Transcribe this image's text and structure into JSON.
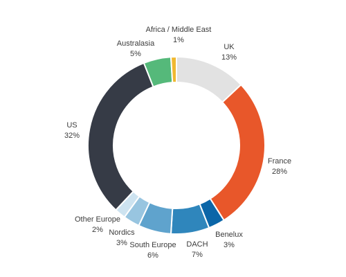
{
  "chart_data": {
    "type": "pie",
    "series": [
      {
        "values": [
          13,
          28,
          3,
          7,
          6,
          3,
          2,
          32,
          5,
          1
        ]
      }
    ],
    "categories": [
      "UK",
      "France",
      "Benelux",
      "DACH",
      "South Europe",
      "Nordics",
      "Other Europe",
      "US",
      "Australasia",
      "Africa / Middle East"
    ],
    "value_labels": [
      "13%",
      "28%",
      "3%",
      "7%",
      "6%",
      "3%",
      "2%",
      "32%",
      "5%",
      "1%"
    ],
    "colors": [
      "#e2e2e2",
      "#e8572a",
      "#0b66a8",
      "#2f86bc",
      "#5fa3cd",
      "#98c5e0",
      "#cde3f0",
      "#363b46",
      "#55b97a",
      "#f0b830"
    ],
    "title": "",
    "legend": "none"
  }
}
